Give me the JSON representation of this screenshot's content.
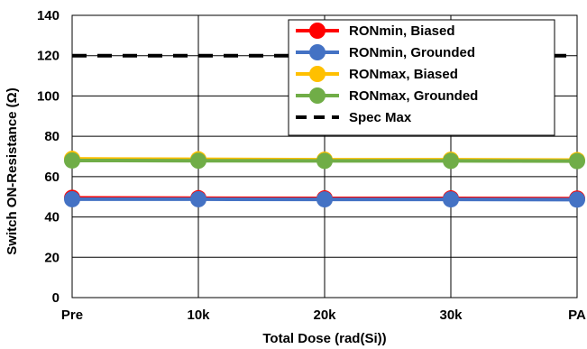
{
  "chart_data": {
    "type": "line",
    "categories": [
      "Pre",
      "10k",
      "20k",
      "30k",
      "PA"
    ],
    "xlabel": "Total Dose (rad(Si))",
    "ylabel": "Switch ON-Resistance (Ω)",
    "ylim": [
      0,
      140
    ],
    "yticks": [
      0,
      20,
      40,
      60,
      80,
      100,
      120,
      140
    ],
    "grid": true,
    "legend_position": "top-right",
    "series": [
      {
        "name": "RONmin, Biased",
        "color": "#ff0000",
        "style": "solid-marker",
        "values": [
          49.5,
          49.3,
          49.2,
          49.2,
          49.1
        ]
      },
      {
        "name": "RONmin, Grounded",
        "color": "#4472c4",
        "style": "solid-marker",
        "values": [
          48.8,
          48.8,
          48.7,
          48.7,
          48.6
        ]
      },
      {
        "name": "RONmax, Biased",
        "color": "#ffc000",
        "style": "solid-marker",
        "values": [
          68.8,
          68.6,
          68.4,
          68.4,
          68.2
        ]
      },
      {
        "name": "RONmax, Grounded",
        "color": "#70ad47",
        "style": "solid-marker",
        "values": [
          68.0,
          67.9,
          67.8,
          67.8,
          67.7
        ]
      },
      {
        "name": "Spec Max",
        "color": "#000000",
        "style": "dashed",
        "values": [
          120,
          120,
          120,
          120,
          120
        ]
      }
    ]
  }
}
